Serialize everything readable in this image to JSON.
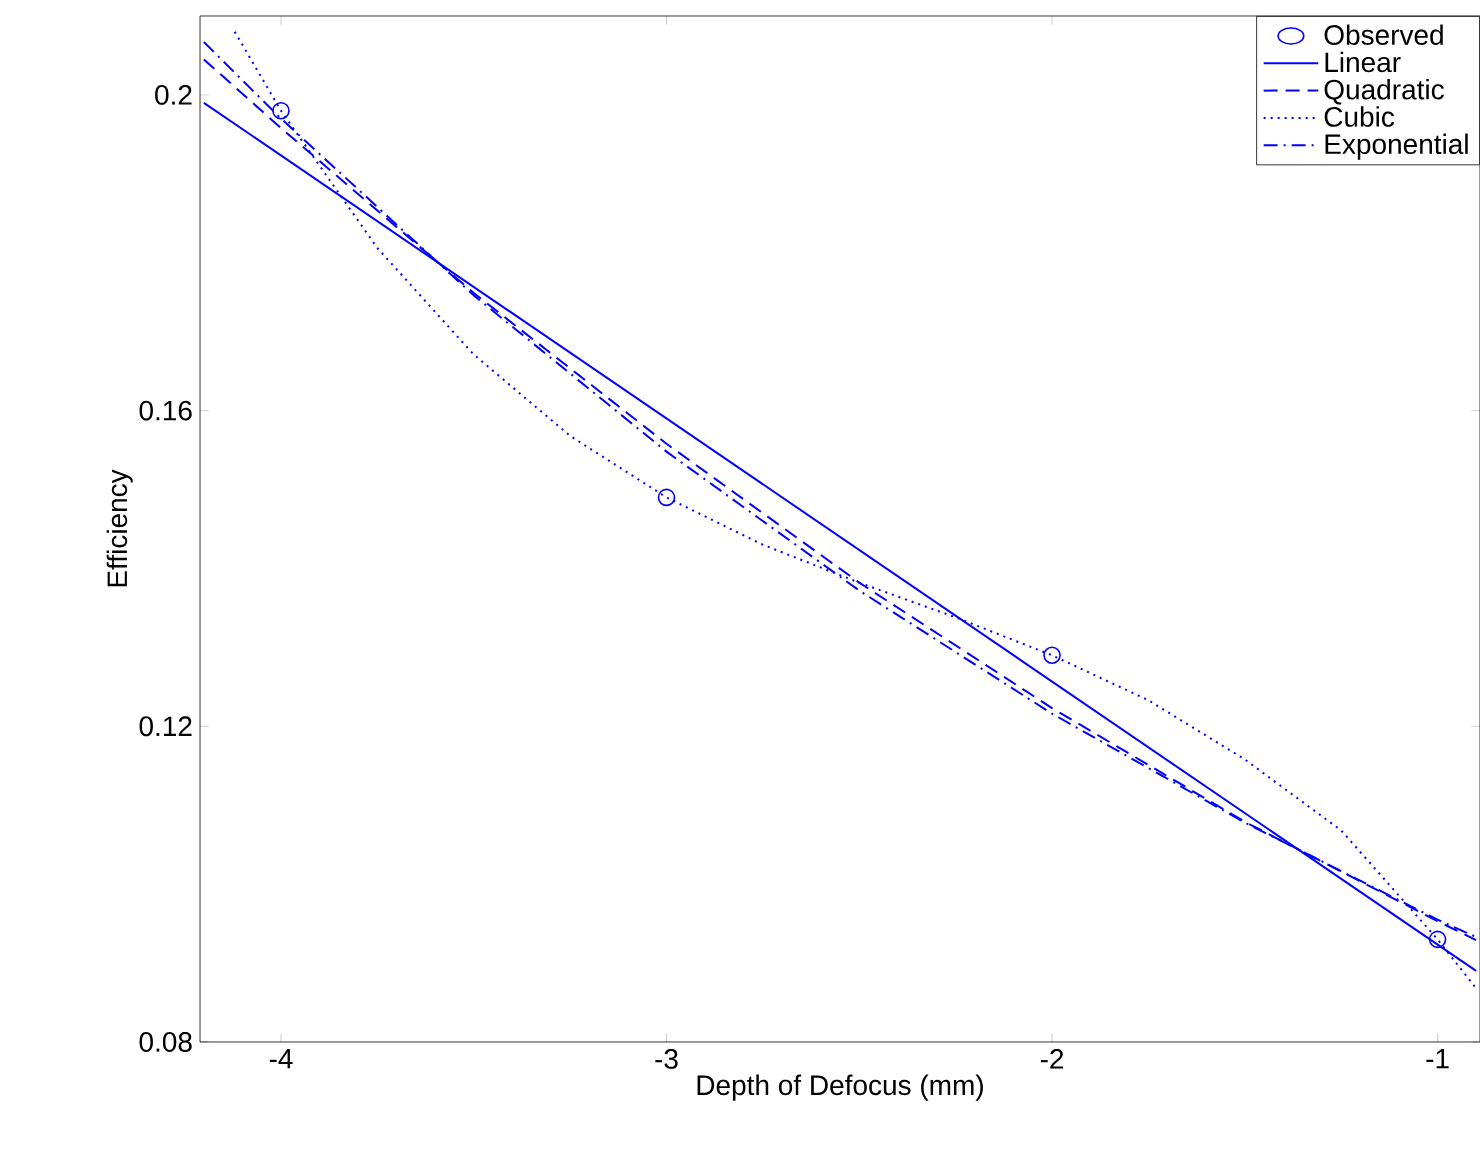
{
  "chart_data": {
    "type": "line",
    "xlabel": "Depth of Defocus (mm)",
    "ylabel": "Efficiency",
    "xlim": [
      -4.21,
      -0.89
    ],
    "ylim": [
      0.08,
      0.21
    ],
    "xticks": [
      -4,
      -3,
      -2,
      -1
    ],
    "yticks": [
      0.08,
      0.12,
      0.16,
      0.2
    ],
    "grid": false,
    "legend": "top right",
    "series": [
      {
        "name": "Observed",
        "type": "scatter",
        "marker": "circle",
        "color": "#0000ff",
        "x": [
          -4,
          -3,
          -2,
          -1
        ],
        "values": [
          0.198,
          0.149,
          0.129,
          0.093
        ]
      },
      {
        "name": "Linear",
        "line_style": "solid",
        "color": "#0000ff",
        "x": [
          -4.2,
          -0.9
        ],
        "values": [
          0.199,
          0.089
        ]
      },
      {
        "name": "Quadratic",
        "line_style": "dashed",
        "color": "#0000ff",
        "x": [
          -4.2,
          -4,
          -3.5,
          -3,
          -2.5,
          -2,
          -1.5,
          -1,
          -0.9
        ],
        "values": [
          0.2045,
          0.1958,
          0.1749,
          0.1558,
          0.1382,
          0.1223,
          0.1079,
          0.0953,
          0.0929
        ]
      },
      {
        "name": "Cubic",
        "line_style": "dotted",
        "color": "#0000ff",
        "x": [
          -4.12,
          -4,
          -3.75,
          -3.5,
          -3.25,
          -3,
          -2.75,
          -2.5,
          -2.25,
          -2,
          -1.75,
          -1.5,
          -1.25,
          -1,
          -0.9
        ],
        "values": [
          0.208,
          0.198,
          0.1806,
          0.1671,
          0.1568,
          0.149,
          0.143,
          0.1382,
          0.1338,
          0.129,
          0.1233,
          0.1158,
          0.1068,
          0.093,
          0.0868
        ]
      },
      {
        "name": "Exponential",
        "line_style": "dashdot",
        "color": "#0000ff",
        "x": [
          -4.2,
          -4,
          -3.5,
          -3,
          -2.5,
          -2,
          -1.5,
          -1,
          -0.9
        ],
        "values": [
          0.2067,
          0.197,
          0.1746,
          0.1548,
          0.1372,
          0.1216,
          0.1078,
          0.0955,
          0.0933
        ]
      }
    ]
  }
}
